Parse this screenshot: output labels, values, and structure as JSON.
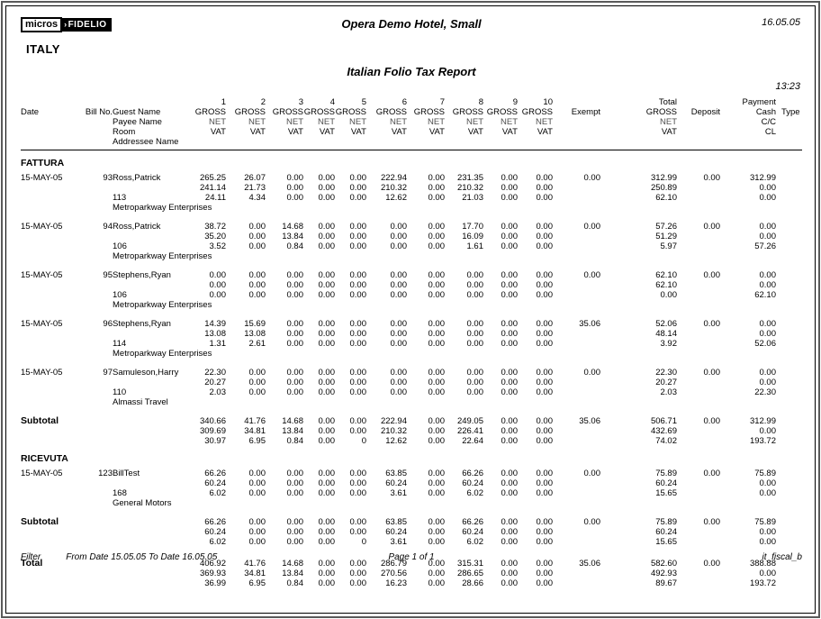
{
  "page": {
    "logo_micros": "micros",
    "logo_arrow": "›",
    "logo_fidelio": "FIDELIO",
    "hotel_name": "Opera Demo Hotel, Small",
    "report_date": "16.05.05",
    "country": "ITALY",
    "report_title": "Italian Folio Tax Report",
    "report_time": "13:23"
  },
  "columns": {
    "numbers": [
      "1",
      "2",
      "3",
      "4",
      "5",
      "6",
      "7",
      "8",
      "9",
      "10"
    ],
    "date": "Date",
    "bill_no": "Bill No.",
    "name_lines": [
      "Guest Name",
      "Payee Name",
      "Room",
      "Addressee Name"
    ],
    "money_lines": [
      "GROSS",
      "NET",
      "VAT"
    ],
    "exempt": "Exempt",
    "total": "Total",
    "deposit": "Deposit",
    "payment": "Payment",
    "payment_lines": [
      "Cash",
      "C/C",
      "CL"
    ],
    "type": "Type"
  },
  "sections": [
    {
      "name": "FATTURA",
      "rows": [
        {
          "date": "15-MAY-05",
          "bill_no": "93",
          "guest_name": "Ross,Patrick",
          "payee_name": "",
          "room": "113",
          "addressee": "Metroparkway Enterprises",
          "gross": [
            "265.25",
            "26.07",
            "0.00",
            "0.00",
            "0.00",
            "222.94",
            "0.00",
            "231.35",
            "0.00",
            "0.00"
          ],
          "net": [
            "241.14",
            "21.73",
            "0.00",
            "0.00",
            "0.00",
            "210.32",
            "0.00",
            "210.32",
            "0.00",
            "0.00"
          ],
          "vat": [
            "24.11",
            "4.34",
            "0.00",
            "0.00",
            "0.00",
            "12.62",
            "0.00",
            "21.03",
            "0.00",
            "0.00"
          ],
          "exempt": "0.00",
          "total_gross": "312.99",
          "total_net": "250.89",
          "total_vat": "62.10",
          "deposit": "0.00",
          "pay_cash": "312.99",
          "pay_cc": "0.00",
          "pay_cl": "0.00",
          "type": ""
        },
        {
          "date": "15-MAY-05",
          "bill_no": "94",
          "guest_name": "Ross,Patrick",
          "payee_name": "",
          "room": "106",
          "addressee": "Metroparkway Enterprises",
          "gross": [
            "38.72",
            "0.00",
            "14.68",
            "0.00",
            "0.00",
            "0.00",
            "0.00",
            "17.70",
            "0.00",
            "0.00"
          ],
          "net": [
            "35.20",
            "0.00",
            "13.84",
            "0.00",
            "0.00",
            "0.00",
            "0.00",
            "16.09",
            "0.00",
            "0.00"
          ],
          "vat": [
            "3.52",
            "0.00",
            "0.84",
            "0.00",
            "0.00",
            "0.00",
            "0.00",
            "1.61",
            "0.00",
            "0.00"
          ],
          "exempt": "0.00",
          "total_gross": "57.26",
          "total_net": "51.29",
          "total_vat": "5.97",
          "deposit": "0.00",
          "pay_cash": "0.00",
          "pay_cc": "0.00",
          "pay_cl": "57.26",
          "type": ""
        },
        {
          "date": "15-MAY-05",
          "bill_no": "95",
          "guest_name": "Stephens,Ryan",
          "payee_name": "",
          "room": "106",
          "addressee": "Metroparkway Enterprises",
          "gross": [
            "0.00",
            "0.00",
            "0.00",
            "0.00",
            "0.00",
            "0.00",
            "0.00",
            "0.00",
            "0.00",
            "0.00"
          ],
          "net": [
            "0.00",
            "0.00",
            "0.00",
            "0.00",
            "0.00",
            "0.00",
            "0.00",
            "0.00",
            "0.00",
            "0.00"
          ],
          "vat": [
            "0.00",
            "0.00",
            "0.00",
            "0.00",
            "0.00",
            "0.00",
            "0.00",
            "0.00",
            "0.00",
            "0.00"
          ],
          "exempt": "0.00",
          "total_gross": "62.10",
          "total_net": "62.10",
          "total_vat": "0.00",
          "deposit": "0.00",
          "pay_cash": "0.00",
          "pay_cc": "0.00",
          "pay_cl": "62.10",
          "type": ""
        },
        {
          "date": "15-MAY-05",
          "bill_no": "96",
          "guest_name": "Stephens,Ryan",
          "payee_name": "",
          "room": "114",
          "addressee": "Metroparkway Enterprises",
          "gross": [
            "14.39",
            "15.69",
            "0.00",
            "0.00",
            "0.00",
            "0.00",
            "0.00",
            "0.00",
            "0.00",
            "0.00"
          ],
          "net": [
            "13.08",
            "13.08",
            "0.00",
            "0.00",
            "0.00",
            "0.00",
            "0.00",
            "0.00",
            "0.00",
            "0.00"
          ],
          "vat": [
            "1.31",
            "2.61",
            "0.00",
            "0.00",
            "0.00",
            "0.00",
            "0.00",
            "0.00",
            "0.00",
            "0.00"
          ],
          "exempt": "35.06",
          "total_gross": "52.06",
          "total_net": "48.14",
          "total_vat": "3.92",
          "deposit": "0.00",
          "pay_cash": "0.00",
          "pay_cc": "0.00",
          "pay_cl": "52.06",
          "type": ""
        },
        {
          "date": "15-MAY-05",
          "bill_no": "97",
          "guest_name": "Samuleson,Harry",
          "payee_name": "",
          "room": "110",
          "addressee": "Almassi Travel",
          "gross": [
            "22.30",
            "0.00",
            "0.00",
            "0.00",
            "0.00",
            "0.00",
            "0.00",
            "0.00",
            "0.00",
            "0.00"
          ],
          "net": [
            "20.27",
            "0.00",
            "0.00",
            "0.00",
            "0.00",
            "0.00",
            "0.00",
            "0.00",
            "0.00",
            "0.00"
          ],
          "vat": [
            "2.03",
            "0.00",
            "0.00",
            "0.00",
            "0.00",
            "0.00",
            "0.00",
            "0.00",
            "0.00",
            "0.00"
          ],
          "exempt": "0.00",
          "total_gross": "22.30",
          "total_net": "20.27",
          "total_vat": "2.03",
          "deposit": "0.00",
          "pay_cash": "0.00",
          "pay_cc": "0.00",
          "pay_cl": "22.30",
          "type": ""
        }
      ],
      "subtotal": {
        "label": "Subtotal",
        "gross": [
          "340.66",
          "41.76",
          "14.68",
          "0.00",
          "0.00",
          "222.94",
          "0.00",
          "249.05",
          "0.00",
          "0.00"
        ],
        "net": [
          "309.69",
          "34.81",
          "13.84",
          "0.00",
          "0.00",
          "210.32",
          "0.00",
          "226.41",
          "0.00",
          "0.00"
        ],
        "vat": [
          "30.97",
          "6.95",
          "0.84",
          "0.00",
          "0",
          "12.62",
          "0.00",
          "22.64",
          "0.00",
          "0.00"
        ],
        "exempt": "35.06",
        "total_gross": "506.71",
        "total_net": "432.69",
        "total_vat": "74.02",
        "deposit": "0.00",
        "pay_cash": "312.99",
        "pay_cc": "0.00",
        "pay_cl": "193.72",
        "type": ""
      }
    },
    {
      "name": "RICEVUTA",
      "rows": [
        {
          "date": "15-MAY-05",
          "bill_no": "123",
          "guest_name": "BillTest",
          "payee_name": "",
          "room": "168",
          "addressee": "General Motors",
          "gross": [
            "66.26",
            "0.00",
            "0.00",
            "0.00",
            "0.00",
            "63.85",
            "0.00",
            "66.26",
            "0.00",
            "0.00"
          ],
          "net": [
            "60.24",
            "0.00",
            "0.00",
            "0.00",
            "0.00",
            "60.24",
            "0.00",
            "60.24",
            "0.00",
            "0.00"
          ],
          "vat": [
            "6.02",
            "0.00",
            "0.00",
            "0.00",
            "0.00",
            "3.61",
            "0.00",
            "6.02",
            "0.00",
            "0.00"
          ],
          "exempt": "0.00",
          "total_gross": "75.89",
          "total_net": "60.24",
          "total_vat": "15.65",
          "deposit": "0.00",
          "pay_cash": "75.89",
          "pay_cc": "0.00",
          "pay_cl": "0.00",
          "type": ""
        }
      ],
      "subtotal": {
        "label": "Subtotal",
        "gross": [
          "66.26",
          "0.00",
          "0.00",
          "0.00",
          "0.00",
          "63.85",
          "0.00",
          "66.26",
          "0.00",
          "0.00"
        ],
        "net": [
          "60.24",
          "0.00",
          "0.00",
          "0.00",
          "0.00",
          "60.24",
          "0.00",
          "60.24",
          "0.00",
          "0.00"
        ],
        "vat": [
          "6.02",
          "0.00",
          "0.00",
          "0.00",
          "0",
          "3.61",
          "0.00",
          "6.02",
          "0.00",
          "0.00"
        ],
        "exempt": "0.00",
        "total_gross": "75.89",
        "total_net": "60.24",
        "total_vat": "15.65",
        "deposit": "0.00",
        "pay_cash": "75.89",
        "pay_cc": "0.00",
        "pay_cl": "0.00",
        "type": ""
      }
    }
  ],
  "grand_total": {
    "label": "Total",
    "gross": [
      "406.92",
      "41.76",
      "14.68",
      "0.00",
      "0.00",
      "286.79",
      "0.00",
      "315.31",
      "0.00",
      "0.00"
    ],
    "net": [
      "369.93",
      "34.81",
      "13.84",
      "0.00",
      "0.00",
      "270.56",
      "0.00",
      "286.65",
      "0.00",
      "0.00"
    ],
    "vat": [
      "36.99",
      "6.95",
      "0.84",
      "0.00",
      "0.00",
      "16.23",
      "0.00",
      "28.66",
      "0.00",
      "0.00"
    ],
    "exempt": "35.06",
    "total_gross": "582.60",
    "total_net": "492.93",
    "total_vat": "89.67",
    "deposit": "0.00",
    "pay_cash": "388.88",
    "pay_cc": "0.00",
    "pay_cl": "193.72",
    "type": ""
  },
  "footer": {
    "filter_label": "Filter",
    "filter_text": "From Date 15.05.05  To Date 16.05.05",
    "page": "Page 1 of 1",
    "report_id": "it_fiscal_b"
  }
}
